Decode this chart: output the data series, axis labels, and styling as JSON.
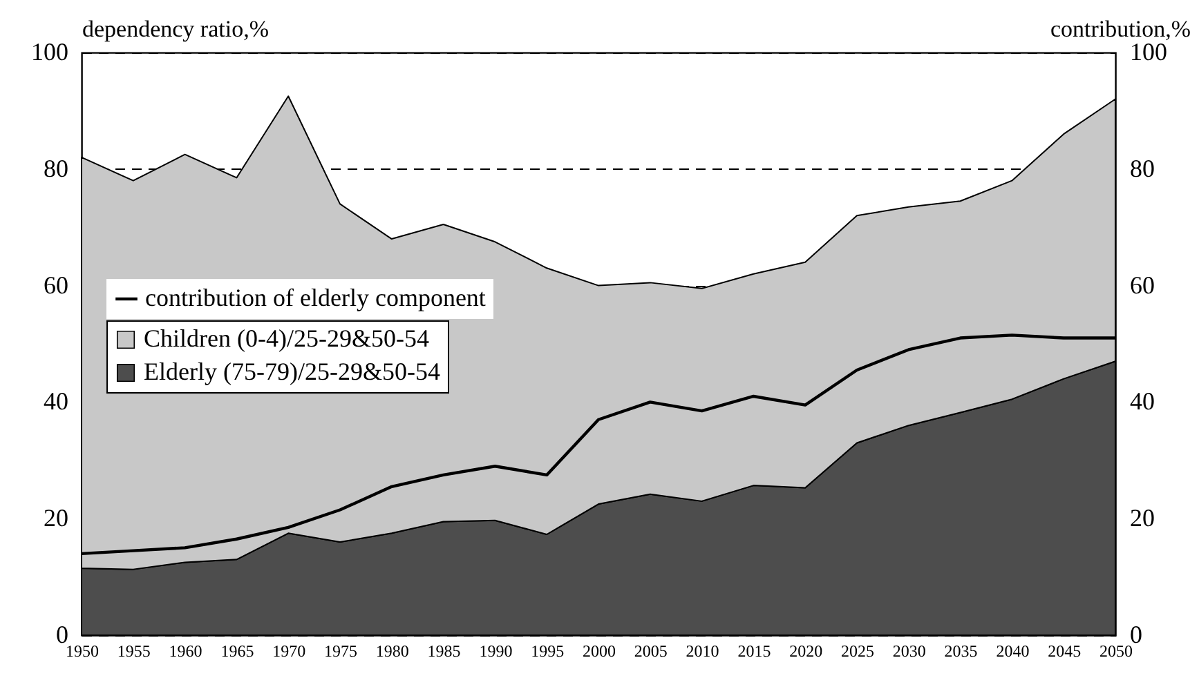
{
  "chart_data": {
    "type": "area",
    "ylabel": "dependency ratio,%",
    "y2label": "contribution,%",
    "stacked": true,
    "grid": "y",
    "legend": "left",
    "categories": [
      "1950",
      "1955",
      "1960",
      "1965",
      "1970",
      "1975",
      "1980",
      "1985",
      "1990",
      "1995",
      "2000",
      "2005",
      "2010",
      "2015",
      "2020",
      "2025",
      "2030",
      "2035",
      "2040",
      "2045",
      "2050"
    ],
    "series": [
      {
        "name": "Elderly (75-79)/25-29&50-54",
        "color": "#4d4d4d",
        "values": [
          11.5,
          11.3,
          12.5,
          13,
          17.5,
          16,
          17.5,
          19.5,
          19.7,
          17.3,
          22.5,
          24.2,
          23,
          25.7,
          25.3,
          33,
          36,
          38.2,
          40.5,
          44,
          47
        ]
      },
      {
        "name": "Children (0-4)/25-29&50-54",
        "color": "#c8c8c8",
        "values": [
          70.5,
          66.7,
          70,
          65.5,
          75,
          58,
          50.5,
          51,
          47.8,
          45.7,
          37.5,
          36.3,
          36.5,
          36.3,
          38.7,
          39,
          37.5,
          36.3,
          37.5,
          42,
          45
        ]
      },
      {
        "name": "contribution of elderly component",
        "type": "line",
        "axis": "y2",
        "color": "#000000",
        "values": [
          14,
          14.5,
          15,
          16.5,
          18.5,
          21.5,
          25.5,
          27.5,
          29,
          27.5,
          37,
          40,
          38.5,
          41,
          39.5,
          45.5,
          49,
          51,
          51.5,
          51,
          51
        ]
      }
    ],
    "ylim": [
      0,
      100
    ],
    "yticks": [
      0,
      20,
      40,
      60,
      80,
      100
    ],
    "y2lim": [
      0,
      100
    ],
    "y2ticks": [
      0,
      20,
      40,
      60,
      80,
      100
    ]
  }
}
